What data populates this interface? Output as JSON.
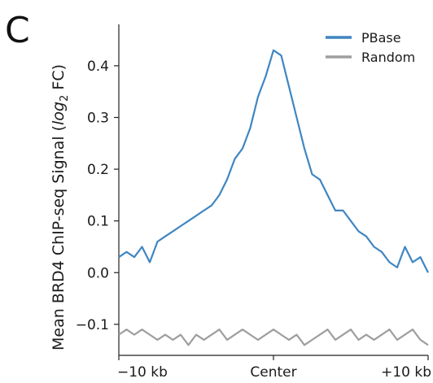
{
  "panel_letter": "C",
  "chart_data": {
    "type": "line",
    "ylabel": "Mean BRD4 ChIP-seq Signal (",
    "ylabel_italic": "log",
    "ylabel_sub": "2",
    "ylabel_tail": " FC)",
    "xlim": [
      -10,
      10
    ],
    "ylim": [
      -0.16,
      0.48
    ],
    "x_ticks": [
      {
        "value": -10,
        "label": "−10 kb"
      },
      {
        "value": 0,
        "label": "Center"
      },
      {
        "value": 10,
        "label": "+10 kb"
      }
    ],
    "y_ticks": [
      {
        "value": -0.1,
        "label": "−0.1"
      },
      {
        "value": 0.0,
        "label": "0.0"
      },
      {
        "value": 0.1,
        "label": "0.1"
      },
      {
        "value": 0.2,
        "label": "0.2"
      },
      {
        "value": 0.3,
        "label": "0.3"
      },
      {
        "value": 0.4,
        "label": "0.4"
      }
    ],
    "legend_position": "top-right",
    "series": [
      {
        "name": "PBase",
        "color": "#3f86c1",
        "x": [
          -10.0,
          -9.5,
          -9.0,
          -8.5,
          -8.0,
          -7.5,
          -7.0,
          -6.5,
          -6.0,
          -5.5,
          -5.0,
          -4.5,
          -4.0,
          -3.5,
          -3.0,
          -2.5,
          -2.0,
          -1.5,
          -1.0,
          -0.5,
          0.0,
          0.5,
          1.0,
          1.5,
          2.0,
          2.5,
          3.0,
          3.5,
          4.0,
          4.5,
          5.0,
          5.5,
          6.0,
          6.5,
          7.0,
          7.5,
          8.0,
          8.5,
          9.0,
          9.5,
          10.0
        ],
        "y": [
          0.03,
          0.04,
          0.03,
          0.05,
          0.02,
          0.06,
          0.07,
          0.08,
          0.09,
          0.1,
          0.11,
          0.12,
          0.13,
          0.15,
          0.18,
          0.22,
          0.24,
          0.28,
          0.34,
          0.38,
          0.43,
          0.42,
          0.36,
          0.3,
          0.24,
          0.19,
          0.18,
          0.15,
          0.12,
          0.12,
          0.1,
          0.08,
          0.07,
          0.05,
          0.04,
          0.02,
          0.01,
          0.05,
          0.02,
          0.03,
          0.0
        ]
      },
      {
        "name": "Random",
        "color": "#9e9e9e",
        "x": [
          -10.0,
          -9.5,
          -9.0,
          -8.5,
          -8.0,
          -7.5,
          -7.0,
          -6.5,
          -6.0,
          -5.5,
          -5.0,
          -4.5,
          -4.0,
          -3.5,
          -3.0,
          -2.5,
          -2.0,
          -1.5,
          -1.0,
          -0.5,
          0.0,
          0.5,
          1.0,
          1.5,
          2.0,
          2.5,
          3.0,
          3.5,
          4.0,
          4.5,
          5.0,
          5.5,
          6.0,
          6.5,
          7.0,
          7.5,
          8.0,
          8.5,
          9.0,
          9.5,
          10.0
        ],
        "y": [
          -0.12,
          -0.11,
          -0.12,
          -0.11,
          -0.12,
          -0.13,
          -0.12,
          -0.13,
          -0.12,
          -0.14,
          -0.12,
          -0.13,
          -0.12,
          -0.11,
          -0.13,
          -0.12,
          -0.11,
          -0.12,
          -0.13,
          -0.12,
          -0.11,
          -0.12,
          -0.13,
          -0.12,
          -0.14,
          -0.13,
          -0.12,
          -0.11,
          -0.13,
          -0.12,
          -0.11,
          -0.13,
          -0.12,
          -0.13,
          -0.12,
          -0.11,
          -0.13,
          -0.12,
          -0.11,
          -0.13,
          -0.14
        ]
      }
    ]
  }
}
